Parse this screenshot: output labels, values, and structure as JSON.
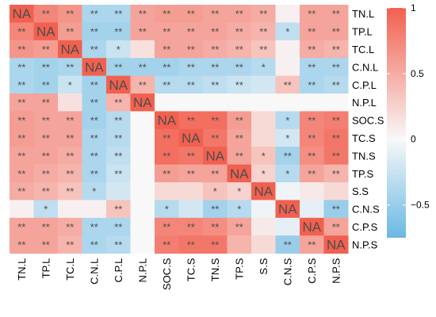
{
  "chart_data": {
    "type": "heatmap",
    "title": "",
    "variables": [
      "TN.L",
      "TP.L",
      "TC.L",
      "C.N.L",
      "C.P.L",
      "N.P.L",
      "SOC.S",
      "TC.S",
      "TN.S",
      "TP.S",
      "S.S",
      "C.N.S",
      "C.P.S",
      "N.P.S"
    ],
    "values": [
      [
        1,
        0.75,
        0.65,
        -0.4,
        -0.4,
        0.55,
        0.6,
        0.6,
        0.55,
        0.55,
        0.5,
        0.05,
        0.55,
        0.55
      ],
      [
        0.75,
        1,
        0.6,
        -0.45,
        -0.45,
        0.55,
        0.55,
        0.55,
        0.55,
        0.5,
        0.45,
        -0.3,
        0.55,
        0.55
      ],
      [
        0.65,
        0.6,
        1,
        -0.4,
        -0.25,
        0.15,
        0.55,
        0.55,
        0.5,
        0.45,
        0.35,
        0.05,
        0.5,
        0.45
      ],
      [
        -0.4,
        -0.45,
        -0.4,
        1,
        -0.45,
        -0.45,
        -0.45,
        -0.4,
        -0.4,
        -0.4,
        -0.35,
        0.05,
        -0.4,
        -0.4
      ],
      [
        -0.4,
        -0.45,
        -0.25,
        -0.45,
        1,
        0.45,
        -0.35,
        -0.35,
        -0.3,
        -0.25,
        -0.2,
        0.35,
        -0.4,
        -0.35
      ],
      [
        0.55,
        0.55,
        0.15,
        -0.45,
        0.45,
        1,
        0.0,
        0.0,
        0.0,
        0.0,
        0.0,
        0.0,
        0.0,
        0.0
      ],
      [
        0.6,
        0.55,
        0.55,
        -0.45,
        -0.35,
        0.0,
        1,
        0.9,
        0.9,
        0.6,
        0.2,
        -0.35,
        0.75,
        0.8
      ],
      [
        0.6,
        0.55,
        0.55,
        -0.4,
        -0.35,
        0.0,
        0.9,
        1,
        0.85,
        0.55,
        0.2,
        -0.2,
        0.75,
        0.85
      ],
      [
        0.55,
        0.55,
        0.5,
        -0.4,
        -0.3,
        0.0,
        0.9,
        0.85,
        1,
        0.55,
        0.35,
        -0.45,
        0.7,
        0.85
      ],
      [
        0.55,
        0.5,
        0.45,
        -0.4,
        -0.25,
        0.0,
        0.6,
        0.55,
        0.55,
        1,
        0.25,
        -0.35,
        0.55,
        0.45
      ],
      [
        0.5,
        0.45,
        0.35,
        -0.35,
        -0.2,
        0.0,
        0.2,
        0.2,
        0.35,
        0.25,
        1,
        -0.05,
        0.1,
        0.2
      ],
      [
        0.05,
        -0.3,
        0.05,
        0.05,
        0.35,
        0.0,
        -0.35,
        -0.2,
        -0.45,
        -0.35,
        -0.05,
        1,
        -0.1,
        -0.5
      ],
      [
        0.55,
        0.55,
        0.5,
        -0.4,
        -0.4,
        0.0,
        0.75,
        0.75,
        0.7,
        0.55,
        0.1,
        -0.1,
        1,
        0.55
      ],
      [
        0.55,
        0.55,
        0.45,
        -0.4,
        -0.35,
        0.0,
        0.8,
        0.85,
        0.85,
        0.45,
        0.2,
        -0.5,
        0.55,
        1
      ]
    ],
    "significance": [
      [
        "NA",
        "**",
        "**",
        "**",
        "**",
        "**",
        "**",
        "**",
        "**",
        "**",
        "**",
        "",
        "**",
        "**"
      ],
      [
        "**",
        "NA",
        "**",
        "**",
        "**",
        "**",
        "**",
        "**",
        "**",
        "**",
        "**",
        "*",
        "**",
        "**"
      ],
      [
        "**",
        "**",
        "NA",
        "**",
        "*",
        "",
        "**",
        "**",
        "**",
        "**",
        "**",
        "",
        "**",
        "**"
      ],
      [
        "**",
        "**",
        "**",
        "NA",
        "**",
        "**",
        "**",
        "**",
        "**",
        "**",
        "*",
        "",
        "**",
        "**"
      ],
      [
        "**",
        "**",
        "*",
        "**",
        "NA",
        "**",
        "**",
        "**",
        "**",
        "**",
        "",
        "**",
        "**",
        "**"
      ],
      [
        "**",
        "**",
        "",
        "**",
        "**",
        "NA",
        "",
        "",
        "",
        "",
        "",
        "",
        "",
        ""
      ],
      [
        "**",
        "**",
        "**",
        "**",
        "**",
        "",
        "NA",
        "**",
        "**",
        "**",
        "",
        "*",
        "**",
        "**"
      ],
      [
        "**",
        "**",
        "**",
        "**",
        "**",
        "",
        "**",
        "NA",
        "**",
        "**",
        "",
        "*",
        "**",
        "**"
      ],
      [
        "**",
        "**",
        "**",
        "**",
        "**",
        "",
        "**",
        "**",
        "NA",
        "**",
        "*",
        "**",
        "**",
        "**"
      ],
      [
        "**",
        "**",
        "**",
        "**",
        "**",
        "",
        "**",
        "**",
        "**",
        "NA",
        "*",
        "*",
        "**",
        "**"
      ],
      [
        "**",
        "**",
        "**",
        "*",
        "",
        "",
        "",
        "",
        "*",
        "*",
        "NA",
        "",
        "",
        ""
      ],
      [
        "",
        "*",
        "",
        "",
        "**",
        "",
        "*",
        "",
        "**",
        "*",
        "",
        "NA",
        "",
        "**"
      ],
      [
        "**",
        "**",
        "**",
        "**",
        "**",
        "",
        "**",
        "**",
        "**",
        "**",
        "",
        "",
        "NA",
        "**"
      ],
      [
        "**",
        "**",
        "**",
        "**",
        "**",
        "",
        "**",
        "**",
        "**",
        "",
        "",
        "**",
        "**",
        "NA"
      ]
    ],
    "colorbar": {
      "range": [
        -0.75,
        1
      ],
      "ticks": [
        1,
        0.5,
        0,
        -0.5
      ],
      "tick_labels": [
        "1",
        "0.5",
        "0",
        "−0.5"
      ],
      "colors": {
        "negative": "#6ab8e3",
        "zero": "#f8f8f8",
        "positive": "#f2604f"
      }
    },
    "legend_position": "right"
  }
}
